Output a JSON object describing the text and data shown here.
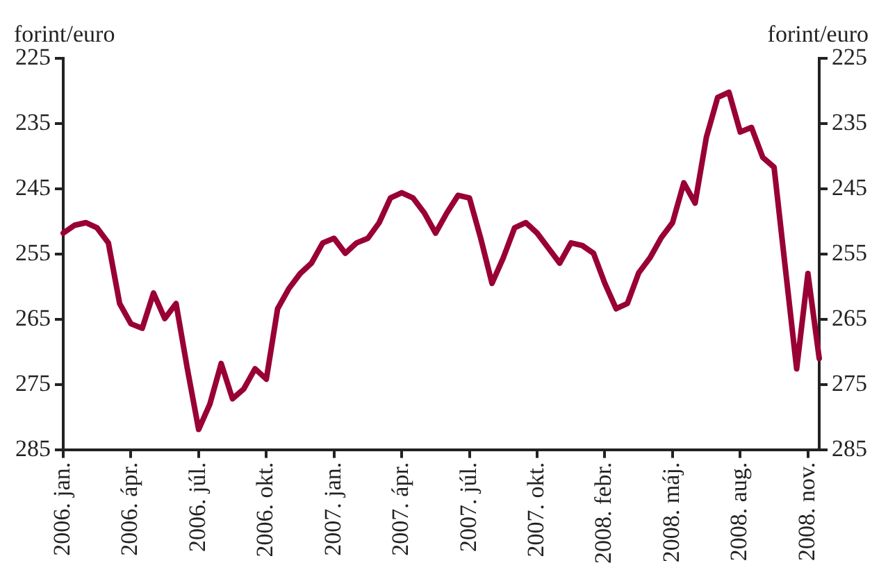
{
  "chart_data": {
    "type": "line",
    "ylabel": "forint/euro",
    "y2label": "forint/euro",
    "categories": [
      "2006. jan.",
      null,
      null,
      null,
      null,
      null,
      "2006. ápr.",
      null,
      null,
      null,
      null,
      null,
      "2006. júl.",
      null,
      null,
      null,
      null,
      null,
      "2006. okt.",
      null,
      null,
      null,
      null,
      null,
      "2007. jan.",
      null,
      null,
      null,
      null,
      null,
      "2007. ápr.",
      null,
      null,
      null,
      null,
      null,
      "2007. júl.",
      null,
      null,
      null,
      null,
      null,
      "2007. okt.",
      null,
      null,
      null,
      null,
      null,
      "2008. febr.",
      null,
      null,
      null,
      null,
      null,
      "2008. máj.",
      null,
      null,
      null,
      null,
      null,
      "2008. aug.",
      null,
      null,
      null,
      null,
      null,
      "2008. nov.",
      null
    ],
    "series": [
      {
        "color": "#990033",
        "axis": "y",
        "values": [
          251.8,
          250.6,
          250.2,
          251,
          253.3,
          262.6,
          265.7,
          266.4,
          261,
          264.9,
          262.6,
          272.6,
          281.9,
          278,
          271.8,
          277.2,
          275.7,
          272.6,
          274.2,
          263.4,
          260.3,
          258,
          256.4,
          253.3,
          252.6,
          254.9,
          253.3,
          252.6,
          250.2,
          246.4,
          245.6,
          246.4,
          248.7,
          251.8,
          248.7,
          246,
          246.4,
          252.6,
          259.5,
          255.6,
          251,
          250.2,
          251.8,
          254.1,
          256.4,
          253.3,
          253.7,
          254.9,
          259.5,
          263.4,
          262.6,
          257.9,
          255.6,
          252.5,
          250.2,
          244.1,
          247.2,
          237.1,
          231,
          230.2,
          236.3,
          235.6,
          240.2,
          241.7,
          257.2,
          272.6,
          258,
          271
        ]
      }
    ],
    "ylim": [
      285,
      225
    ],
    "yticks": [
      225,
      235,
      245,
      255,
      265,
      275,
      285
    ],
    "y2lim": [
      285,
      225
    ],
    "y2ticks": [
      225,
      235,
      245,
      255,
      265,
      275,
      285
    ],
    "grid": false,
    "legend": false,
    "marker": "none",
    "line_style": "solid"
  }
}
